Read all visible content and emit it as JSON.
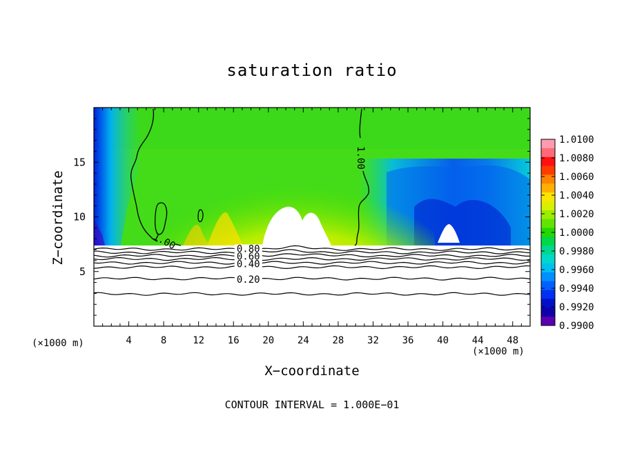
{
  "chart_data": {
    "type": "heatmap",
    "title": "saturation ratio",
    "xlabel": "X−coordinate",
    "ylabel": "Z−coordinate",
    "x_unit_left": "(×1000 m)",
    "x_unit_right": "(×1000 m)",
    "footer": "CONTOUR INTERVAL = 1.000E−01",
    "xlim": [
      0,
      50
    ],
    "ylim": [
      0,
      20
    ],
    "x_ticks": [
      "4",
      "8",
      "12",
      "16",
      "20",
      "24",
      "28",
      "32",
      "36",
      "40",
      "44",
      "48"
    ],
    "y_ticks": [
      "5",
      "10",
      "15"
    ],
    "colorbar": {
      "labels": [
        "1.0100",
        "1.0080",
        "1.0060",
        "1.0040",
        "1.0020",
        "1.0000",
        "0.9980",
        "0.9960",
        "0.9940",
        "0.9920",
        "0.9900"
      ],
      "colors": [
        "#ff9bb0",
        "#ff6a78",
        "#ff1010",
        "#ff3c00",
        "#ff8200",
        "#ffb000",
        "#ffe400",
        "#d8f000",
        "#9ced00",
        "#60e400",
        "#22d800",
        "#00d64a",
        "#00d890",
        "#00d8c8",
        "#00c0f0",
        "#0090ff",
        "#0060ff",
        "#0030f0",
        "#0010c8",
        "#1000a8",
        "#5a00b0"
      ]
    },
    "contour_labels": [
      {
        "text": "1.00",
        "x": 30.6,
        "y": 15.4
      },
      {
        "text": "1.00",
        "x": 8.1,
        "y": 7.8
      },
      {
        "text": "0.80",
        "x": 17.7,
        "y": 7.1
      },
      {
        "text": "0.60",
        "x": 17.7,
        "y": 6.4
      },
      {
        "text": "0.40",
        "x": 17.7,
        "y": 5.7
      },
      {
        "text": "0.20",
        "x": 17.7,
        "y": 4.3
      }
    ],
    "lower_contours": [
      7.05,
      6.75,
      6.45,
      6.15,
      5.8,
      5.4,
      4.35,
      2.95
    ]
  }
}
